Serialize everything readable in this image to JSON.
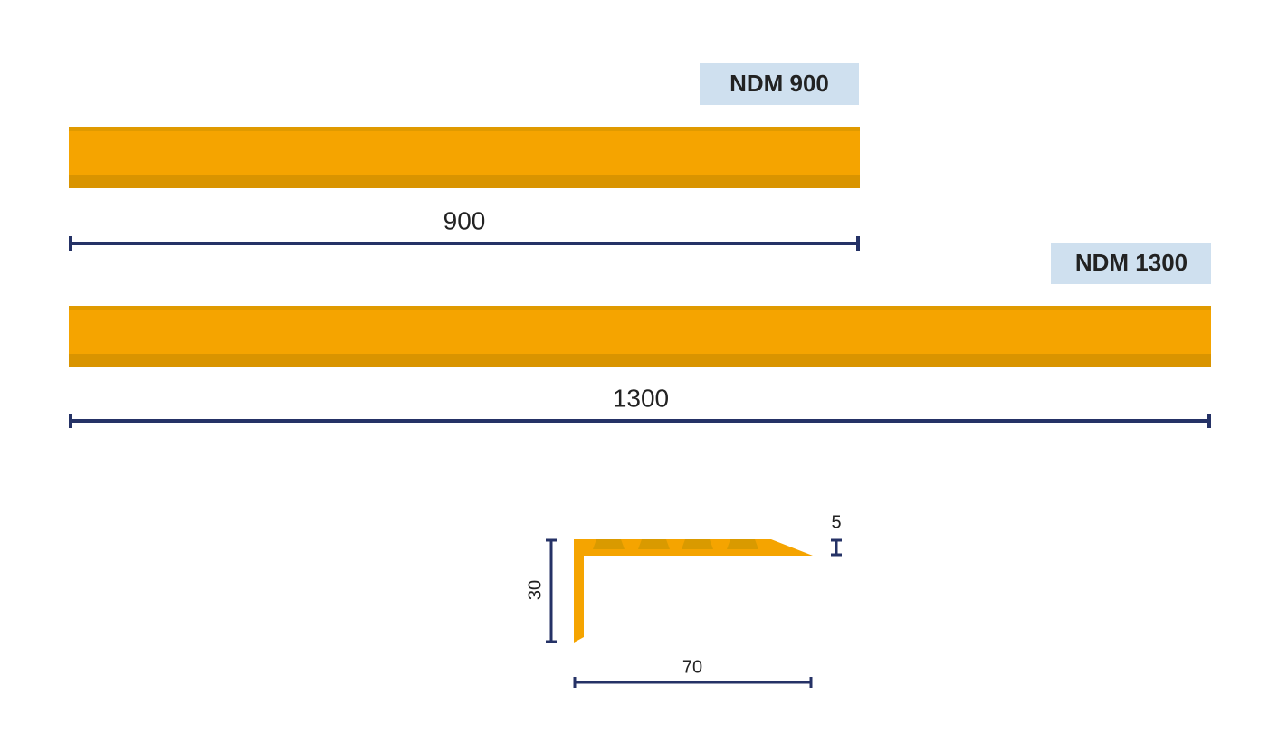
{
  "products": [
    {
      "name": "NDM 900",
      "length": "900"
    },
    {
      "name": "NDM 1300",
      "length": "1300"
    }
  ],
  "profile": {
    "thickness": "5",
    "height": "30",
    "depth": "70"
  }
}
